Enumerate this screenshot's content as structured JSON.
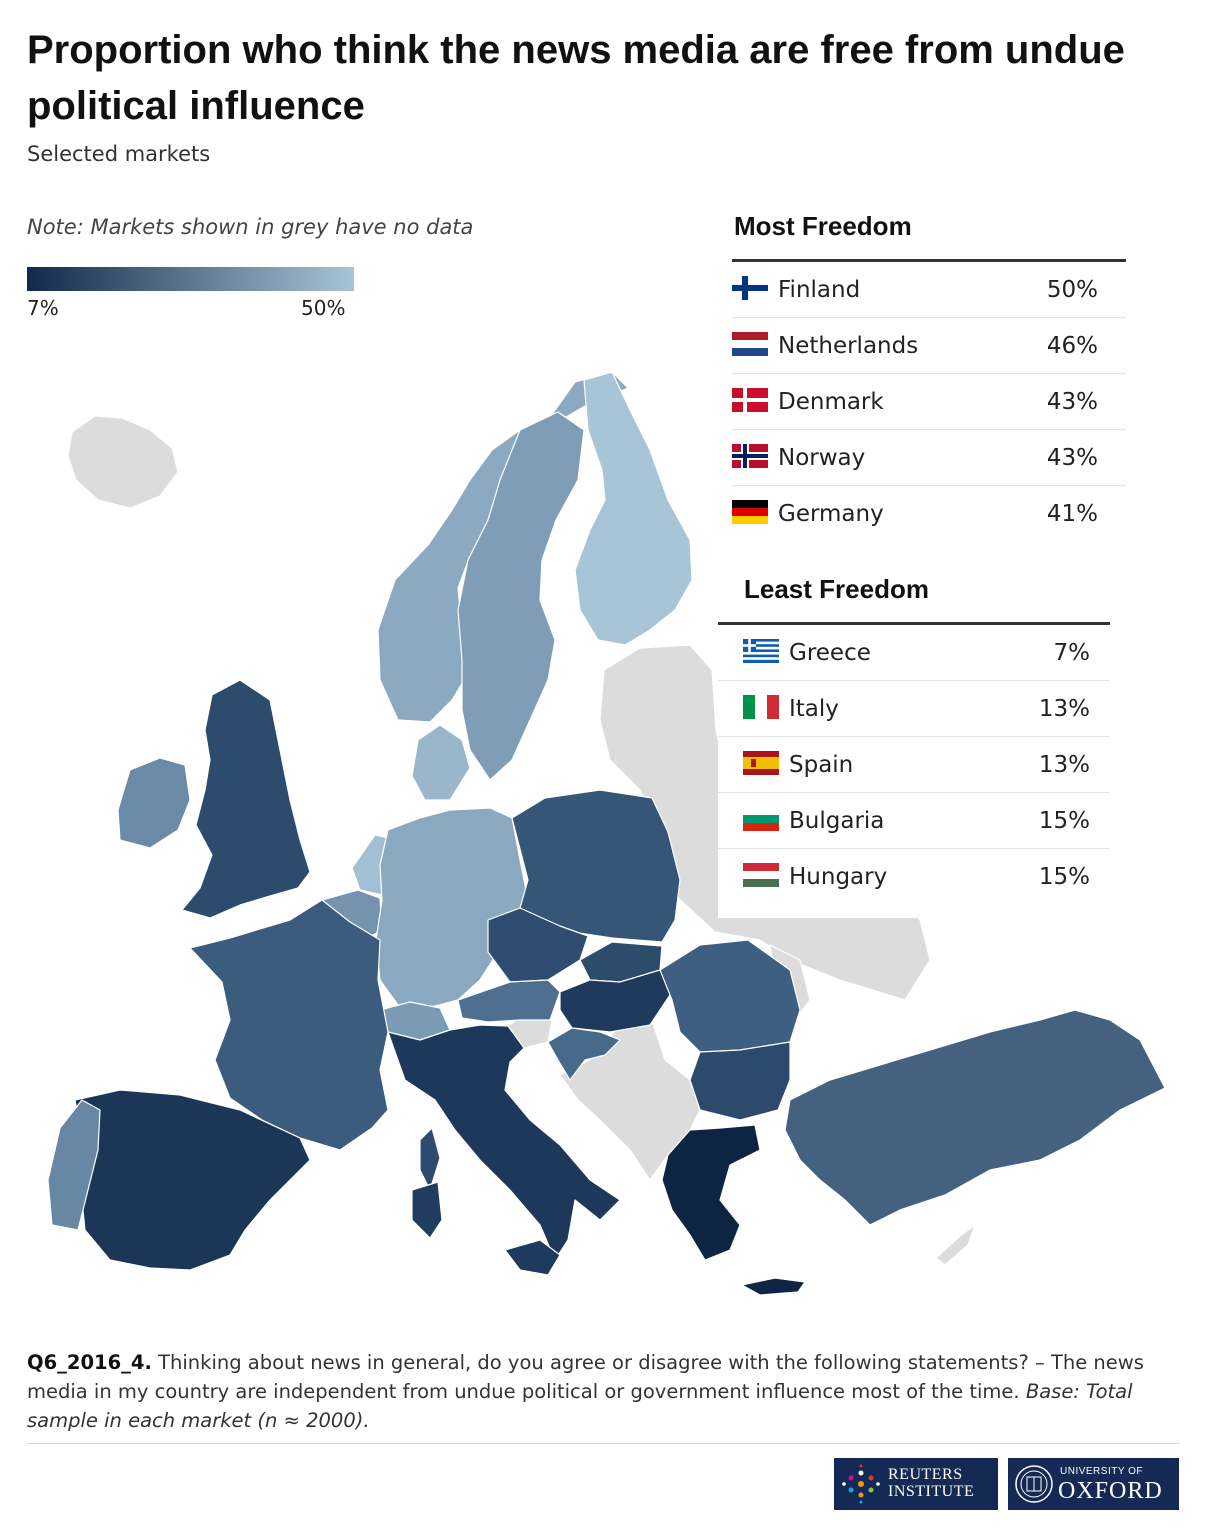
{
  "title": "Proportion who think the news media are free from undue political influence",
  "subtitle": "Selected markets",
  "note": "Note: Markets shown in grey have no data",
  "legend": {
    "min_label": "7%",
    "max_label": "50%",
    "min": 7,
    "max": 50,
    "color_low": "#12294a",
    "color_high": "#a8c4d7",
    "no_data_color": "#dcdcdc"
  },
  "most_freedom": {
    "title": "Most Freedom",
    "rows": [
      {
        "country": "Finland",
        "value": "50%"
      },
      {
        "country": "Netherlands",
        "value": "46%"
      },
      {
        "country": "Denmark",
        "value": "43%"
      },
      {
        "country": "Norway",
        "value": "43%"
      },
      {
        "country": "Germany",
        "value": "41%"
      }
    ]
  },
  "least_freedom": {
    "title": "Least Freedom",
    "rows": [
      {
        "country": "Greece",
        "value": "7%"
      },
      {
        "country": "Italy",
        "value": "13%"
      },
      {
        "country": "Spain",
        "value": "13%"
      },
      {
        "country": "Bulgaria",
        "value": "15%"
      },
      {
        "country": "Hungary",
        "value": "15%"
      }
    ]
  },
  "footnote": {
    "code": "Q6_2016_4.",
    "question": "Thinking about news in general, do you agree or disagree with the following statements? – The news media in my country are independent from undue political or government influence most of the time.",
    "base": "Base: Total sample in each market (n ≈ 2000)."
  },
  "logos": {
    "reuters_line1": "REUTERS",
    "reuters_line2": "INSTITUTE",
    "oxford_line1": "UNIVERSITY OF",
    "oxford_line2": "OXFORD"
  }
}
